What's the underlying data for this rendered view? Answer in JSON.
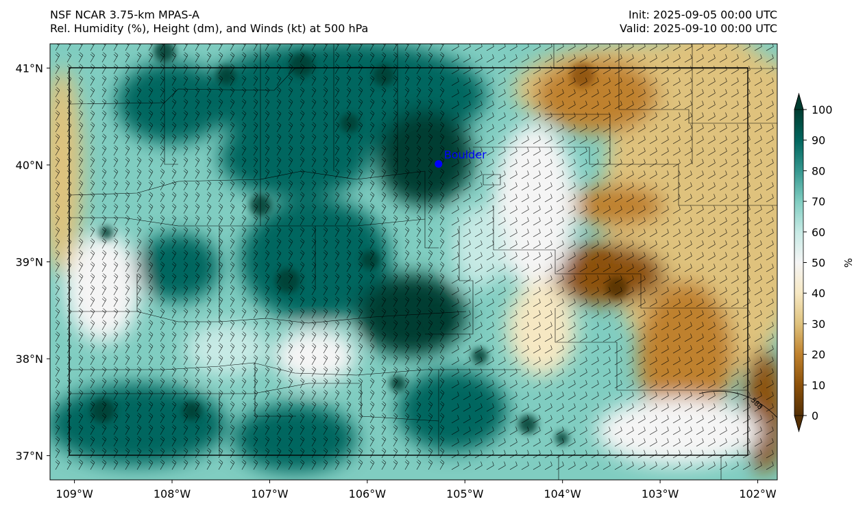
{
  "header": {
    "model_title": "NSF NCAR 3.75-km MPAS-A",
    "field_title": "Rel. Humidity (%), Height (dm), and Winds (kt) at 500 hPa",
    "init_time": "Init: 2025-09-05 00:00 UTC",
    "valid_time": "Valid: 2025-09-10 00:00 UTC"
  },
  "map": {
    "extent": {
      "lon_min": -109.25,
      "lon_max": -101.8,
      "lat_min": 36.75,
      "lat_max": 41.25
    },
    "lat_ticks": [
      41,
      40,
      39,
      38,
      37
    ],
    "lat_labels": [
      "41°N",
      "40°N",
      "39°N",
      "38°N",
      "37°N"
    ],
    "lon_ticks": [
      -109,
      -108,
      -107,
      -106,
      -105,
      -104,
      -103,
      -102
    ],
    "lon_labels": [
      "109°W",
      "108°W",
      "107°W",
      "106°W",
      "105°W",
      "104°W",
      "103°W",
      "102°W"
    ],
    "city": {
      "name": "Boulder",
      "lon": -105.27,
      "lat": 40.01,
      "color": "#0000ff"
    },
    "height_contour": {
      "label": "588"
    },
    "state_border": {
      "north_lat": 41,
      "south_lat": 37,
      "west_lon": -109.05,
      "east_lon": -102.05
    }
  },
  "colorbar": {
    "label": "%",
    "ticks": [
      100,
      90,
      80,
      70,
      60,
      50,
      40,
      30,
      20,
      10,
      0
    ],
    "colors": [
      "#543005",
      "#8c510a",
      "#bf812d",
      "#dfc27d",
      "#f6e8c3",
      "#f5f5f5",
      "#c7eae5",
      "#80cdc1",
      "#35978f",
      "#01665e",
      "#003c30"
    ]
  }
}
